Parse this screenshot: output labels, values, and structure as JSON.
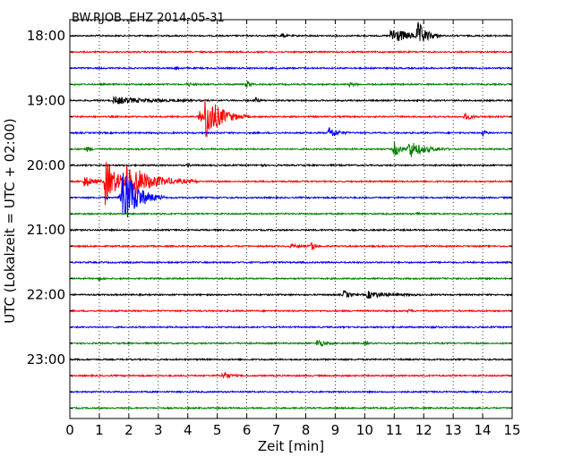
{
  "chart_data": {
    "type": "line",
    "title": "BW.RJOB..EHZ 2014-05-31",
    "xlabel": "Zeit  [min]",
    "ylabel": "UTC (Lokalzeit = UTC + 02:00)",
    "xlim": [
      0,
      15
    ],
    "x_ticks": [
      "0",
      "1",
      "2",
      "3",
      "4",
      "5",
      "6",
      "7",
      "8",
      "9",
      "10",
      "11",
      "12",
      "13",
      "14",
      "15"
    ],
    "y_tick_labels": [
      "18:00",
      "19:00",
      "20:00",
      "21:00",
      "22:00",
      "23:00"
    ],
    "trace_start": "18:00",
    "trace_interval_min": 15,
    "grid_x": true,
    "colors": [
      "#000000",
      "#ff0000",
      "#0000ff",
      "#008000"
    ],
    "traces": [
      {
        "start": "18:00",
        "color": "#000000",
        "bursts": [
          {
            "t": 7.2,
            "amp": 3,
            "dur": 0.3
          },
          {
            "t": 10.9,
            "amp": 10,
            "dur": 1.6
          },
          {
            "t": 11.8,
            "amp": 14,
            "dur": 0.8
          }
        ]
      },
      {
        "start": "18:15",
        "color": "#ff0000",
        "bursts": []
      },
      {
        "start": "18:30",
        "color": "#0000ff",
        "bursts": [
          {
            "t": 3.6,
            "amp": 1.5,
            "dur": 0.3
          }
        ]
      },
      {
        "start": "18:45",
        "color": "#008000",
        "bursts": [
          {
            "t": 4.0,
            "amp": 2,
            "dur": 0.6
          },
          {
            "t": 6.0,
            "amp": 5,
            "dur": 0.3
          },
          {
            "t": 9.5,
            "amp": 2,
            "dur": 0.5
          }
        ]
      },
      {
        "start": "19:00",
        "color": "#000000",
        "bursts": [
          {
            "t": 1.5,
            "amp": 4,
            "dur": 3.2
          },
          {
            "t": 6.3,
            "amp": 3,
            "dur": 0.3
          }
        ]
      },
      {
        "start": "19:15",
        "color": "#ff0000",
        "bursts": [
          {
            "t": 4.4,
            "amp": 6,
            "dur": 1.2
          },
          {
            "t": 4.6,
            "amp": 24,
            "dur": 1.5
          },
          {
            "t": 13.4,
            "amp": 4,
            "dur": 0.6
          }
        ]
      },
      {
        "start": "19:30",
        "color": "#0000ff",
        "bursts": [
          {
            "t": 8.8,
            "amp": 7,
            "dur": 0.7
          },
          {
            "t": 14.0,
            "amp": 3,
            "dur": 0.4
          }
        ]
      },
      {
        "start": "19:45",
        "color": "#008000",
        "bursts": [
          {
            "t": 0.6,
            "amp": 3,
            "dur": 0.3
          },
          {
            "t": 11.0,
            "amp": 9,
            "dur": 0.6
          },
          {
            "t": 11.5,
            "amp": 10,
            "dur": 1.4
          }
        ]
      },
      {
        "start": "20:00",
        "color": "#000000",
        "bursts": [
          {
            "t": 4.0,
            "amp": 2,
            "dur": 0.3
          },
          {
            "t": 6.5,
            "amp": 2,
            "dur": 0.2
          }
        ]
      },
      {
        "start": "20:15",
        "color": "#ff0000",
        "bursts": [
          {
            "t": 0.5,
            "amp": 7,
            "dur": 0.8
          },
          {
            "t": 1.2,
            "amp": 26,
            "dur": 1.2
          },
          {
            "t": 1.9,
            "amp": 20,
            "dur": 2.5
          }
        ]
      },
      {
        "start": "20:30",
        "color": "#0000ff",
        "bursts": [
          {
            "t": 1.7,
            "amp": 7,
            "dur": 1.0
          },
          {
            "t": 1.8,
            "amp": 34,
            "dur": 1.4
          }
        ]
      },
      {
        "start": "20:45",
        "color": "#008000",
        "bursts": [
          {
            "t": 11.8,
            "amp": 2,
            "dur": 0.3
          }
        ]
      },
      {
        "start": "21:00",
        "color": "#000000",
        "bursts": []
      },
      {
        "start": "21:15",
        "color": "#ff0000",
        "bursts": [
          {
            "t": 7.5,
            "amp": 2,
            "dur": 0.8
          },
          {
            "t": 8.2,
            "amp": 6,
            "dur": 0.3
          }
        ]
      },
      {
        "start": "21:30",
        "color": "#0000ff",
        "bursts": []
      },
      {
        "start": "21:45",
        "color": "#008000",
        "bursts": [
          {
            "t": 1.0,
            "amp": 1.5,
            "dur": 0.3
          }
        ]
      },
      {
        "start": "22:00",
        "color": "#000000",
        "bursts": [
          {
            "t": 9.3,
            "amp": 5,
            "dur": 0.5
          },
          {
            "t": 10.1,
            "amp": 4,
            "dur": 1.8
          }
        ]
      },
      {
        "start": "22:15",
        "color": "#ff0000",
        "bursts": [
          {
            "t": 11.5,
            "amp": 1.5,
            "dur": 0.3
          }
        ]
      },
      {
        "start": "22:30",
        "color": "#0000ff",
        "bursts": [
          {
            "t": 12.3,
            "amp": 1.5,
            "dur": 0.3
          }
        ]
      },
      {
        "start": "22:45",
        "color": "#008000",
        "bursts": [
          {
            "t": 8.4,
            "amp": 5,
            "dur": 0.6
          },
          {
            "t": 10.0,
            "amp": 2,
            "dur": 0.3
          }
        ]
      },
      {
        "start": "23:00",
        "color": "#000000",
        "bursts": []
      },
      {
        "start": "23:15",
        "color": "#ff0000",
        "bursts": [
          {
            "t": 5.2,
            "amp": 5,
            "dur": 0.6
          }
        ]
      },
      {
        "start": "23:30",
        "color": "#0000ff",
        "bursts": []
      },
      {
        "start": "23:45",
        "color": "#008000",
        "bursts": []
      }
    ]
  }
}
